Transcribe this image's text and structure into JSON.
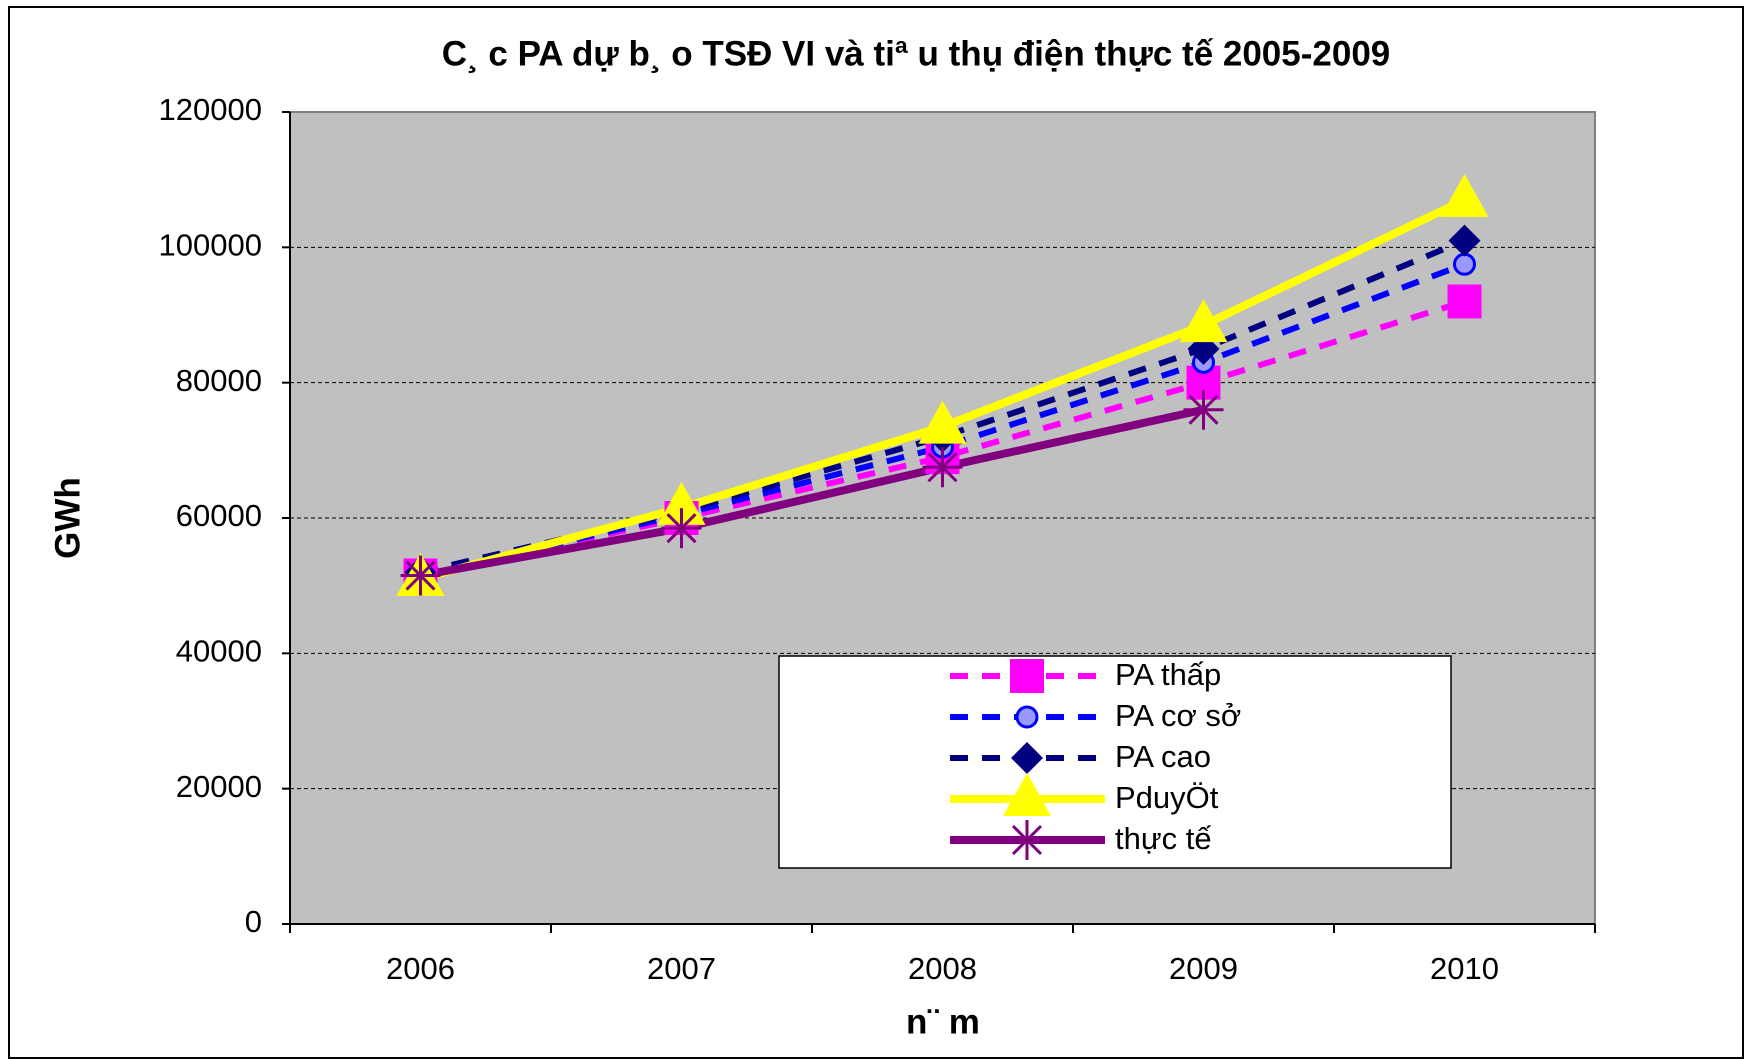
{
  "chart_data": {
    "type": "line",
    "title": "C¸ c PA dự b¸ o TSĐ VI và tiª u thụ điện thực tế 2005-2009",
    "x_label": "n¨ m",
    "y_label": "GWh",
    "categories": [
      "2006",
      "2007",
      "2008",
      "2009",
      "2010"
    ],
    "series": [
      {
        "name": "PA thấp",
        "color": "#ff00ff",
        "dashed": true,
        "marker": "square",
        "values": [
          51500,
          60000,
          69000,
          80000,
          92000
        ]
      },
      {
        "name": "PA cơ sở",
        "color": "#0000ff",
        "dashed": true,
        "marker": "circle",
        "values": [
          51500,
          60500,
          70500,
          83000,
          97500
        ]
      },
      {
        "name": "PA cao",
        "color": "#000080",
        "dashed": true,
        "marker": "diamond",
        "values": [
          52000,
          61000,
          72000,
          85000,
          101000
        ]
      },
      {
        "name": "PduyÖt",
        "color": "#ffff00",
        "dashed": false,
        "marker": "triangle",
        "values": [
          51000,
          61500,
          73500,
          88500,
          107000
        ]
      },
      {
        "name": "thực tế",
        "color": "#800080",
        "dashed": false,
        "marker": "star",
        "values": [
          51500,
          58500,
          67500,
          76000,
          null
        ]
      }
    ],
    "ylim": [
      0,
      120000
    ],
    "yticks": [
      0,
      20000,
      40000,
      60000,
      80000,
      100000,
      120000
    ],
    "grid": true
  }
}
